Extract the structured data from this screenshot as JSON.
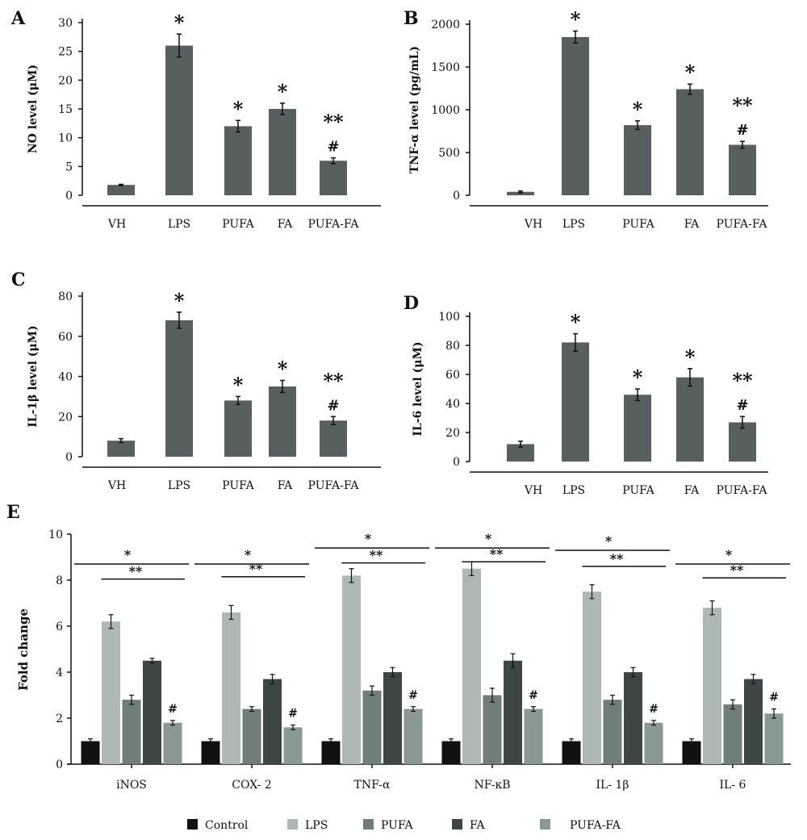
{
  "chart_data": [
    {
      "panel": "A",
      "type": "bar",
      "categories": [
        "VH",
        "LPS",
        "PUFA",
        "FA",
        "PUFA-FA"
      ],
      "values": [
        1.8,
        26,
        12,
        15,
        6
      ],
      "errors": [
        0.1,
        2,
        1,
        1,
        0.5
      ],
      "annotations": [
        "",
        "*",
        "*",
        "*",
        "**\n#"
      ],
      "ylabel": "NO level (μM)",
      "ylim": [
        0,
        30
      ],
      "yticks": [
        0,
        5,
        10,
        15,
        20,
        25,
        30
      ],
      "color": "#575f5f"
    },
    {
      "panel": "B",
      "type": "bar",
      "categories": [
        "VH",
        "LPS",
        "PUFA",
        "FA",
        "PUFA-FA"
      ],
      "values": [
        40,
        1850,
        820,
        1240,
        590
      ],
      "errors": [
        10,
        70,
        50,
        60,
        40
      ],
      "annotations": [
        "",
        "*",
        "*",
        "*",
        "**\n#"
      ],
      "ylabel": "TNF-α level (pg/mL)",
      "ylim": [
        0,
        2000
      ],
      "yticks": [
        0,
        500,
        1000,
        1500,
        2000
      ],
      "color": "#575f5f"
    },
    {
      "panel": "C",
      "type": "bar",
      "categories": [
        "VH",
        "LPS",
        "PUFA",
        "FA",
        "PUFA-FA"
      ],
      "values": [
        8,
        68,
        28,
        35,
        18
      ],
      "errors": [
        1,
        4,
        2,
        3,
        2
      ],
      "annotations": [
        "",
        "*",
        "*",
        "*",
        "**\n#"
      ],
      "ylabel": "IL-1β level (μM)",
      "ylim": [
        0,
        80
      ],
      "yticks": [
        0,
        20,
        40,
        60,
        80
      ],
      "color": "#575f5f"
    },
    {
      "panel": "D",
      "type": "bar",
      "categories": [
        "VH",
        "LPS",
        "PUFA",
        "FA",
        "PUFA-FA"
      ],
      "values": [
        12,
        82,
        46,
        58,
        27
      ],
      "errors": [
        2,
        6,
        4,
        6,
        4
      ],
      "annotations": [
        "",
        "*",
        "*",
        "*",
        "**\n#"
      ],
      "ylabel": "IL-6 level (μM)",
      "ylim": [
        0,
        100
      ],
      "yticks": [
        0,
        20,
        40,
        60,
        80,
        100
      ],
      "color": "#575f5f"
    },
    {
      "panel": "E",
      "type": "bar",
      "ylabel": "Fold change",
      "ylim": [
        0,
        10
      ],
      "yticks": [
        0,
        2,
        4,
        6,
        8,
        10
      ],
      "categories": [
        "iNOS",
        "COX- 2",
        "TNF-α",
        "NF-κB",
        "IL- 1β",
        "IL- 6"
      ],
      "series": [
        {
          "name": "Control",
          "color": "#111111",
          "values": [
            1,
            1,
            1,
            1,
            1,
            1
          ],
          "errors": [
            0.1,
            0.1,
            0.1,
            0.1,
            0.1,
            0.1
          ]
        },
        {
          "name": "LPS",
          "color": "#adb8b5",
          "values": [
            6.2,
            6.6,
            8.2,
            8.5,
            7.5,
            6.8
          ],
          "errors": [
            0.3,
            0.3,
            0.3,
            0.3,
            0.3,
            0.3
          ]
        },
        {
          "name": "PUFA",
          "color": "#6f7d7b",
          "values": [
            2.8,
            2.4,
            3.2,
            3.0,
            2.8,
            2.6
          ],
          "errors": [
            0.2,
            0.1,
            0.2,
            0.3,
            0.2,
            0.2
          ]
        },
        {
          "name": "FA",
          "color": "#3d4545",
          "values": [
            4.5,
            3.7,
            4.0,
            4.5,
            4.0,
            3.7
          ],
          "errors": [
            0.1,
            0.2,
            0.2,
            0.3,
            0.2,
            0.2
          ]
        },
        {
          "name": "PUFA-FA",
          "color": "#8a9894",
          "values": [
            1.8,
            1.6,
            2.4,
            2.4,
            1.8,
            2.2
          ],
          "errors": [
            0.1,
            0.1,
            0.1,
            0.1,
            0.1,
            0.2
          ]
        }
      ],
      "significance": [
        {
          "single_star_level": 8.7,
          "double_star_level": 8.05,
          "hash": "#"
        },
        {
          "single_star_level": 8.7,
          "double_star_level": 8.15,
          "hash": "#"
        },
        {
          "single_star_level": 9.4,
          "double_star_level": 8.75,
          "hash": "#"
        },
        {
          "single_star_level": 9.4,
          "double_star_level": 8.8,
          "hash": "#"
        },
        {
          "single_star_level": 9.3,
          "double_star_level": 8.6,
          "hash": "#"
        },
        {
          "single_star_level": 8.7,
          "double_star_level": 8.1,
          "hash": "#"
        }
      ],
      "legend_placement": "bottom"
    }
  ]
}
